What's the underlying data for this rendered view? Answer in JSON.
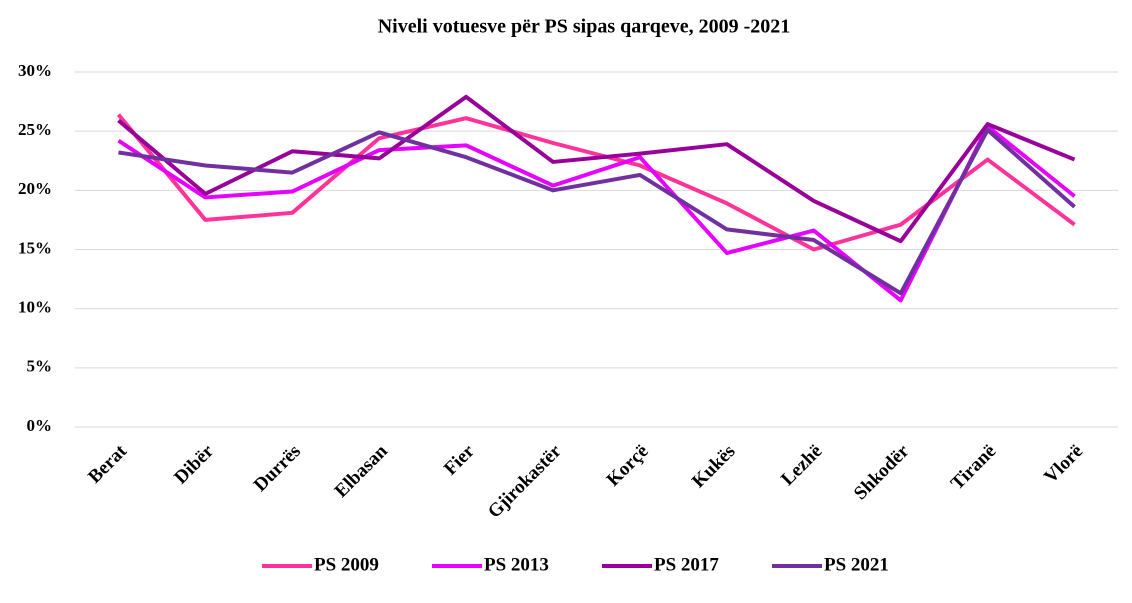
{
  "chart_data": {
    "type": "line",
    "title": "Niveli votuesve për PS sipas qarqeve, 2009 -2021",
    "categories": [
      "Berat",
      "Dibër",
      "Durrës",
      "Elbasan",
      "Fier",
      "Gjirokastër",
      "Korçë",
      "Kukës",
      "Lezhë",
      "Shkodër",
      "Tiranë",
      "Vlorë"
    ],
    "series": [
      {
        "name": "PS 2009",
        "color": "#ff3399",
        "values": [
          26.4,
          17.5,
          18.1,
          24.4,
          26.1,
          24.0,
          22.1,
          18.9,
          15.0,
          17.1,
          22.6,
          17.1
        ]
      },
      {
        "name": "PS 2013",
        "color": "#e600ff",
        "values": [
          24.2,
          19.4,
          19.9,
          23.4,
          23.8,
          20.4,
          22.8,
          14.7,
          16.6,
          10.7,
          25.4,
          19.5
        ]
      },
      {
        "name": "PS 2017",
        "color": "#990099",
        "values": [
          25.9,
          19.7,
          23.3,
          22.7,
          27.9,
          22.4,
          23.1,
          23.9,
          19.1,
          15.7,
          25.6,
          22.6
        ]
      },
      {
        "name": "PS 2021",
        "color": "#7030a0",
        "values": [
          23.2,
          22.1,
          21.5,
          24.9,
          22.8,
          20.0,
          21.3,
          16.7,
          15.8,
          11.3,
          25.1,
          18.6
        ]
      }
    ],
    "ylim": [
      0,
      30
    ],
    "yticks": [
      {
        "value": 0,
        "label": "0%"
      },
      {
        "value": 5,
        "label": "5%"
      },
      {
        "value": 10,
        "label": "10%"
      },
      {
        "value": 15,
        "label": "15%"
      },
      {
        "value": 20,
        "label": "20%"
      },
      {
        "value": 25,
        "label": "25%"
      },
      {
        "value": 30,
        "label": "30%"
      }
    ],
    "grid": true,
    "legend": "bottom"
  }
}
